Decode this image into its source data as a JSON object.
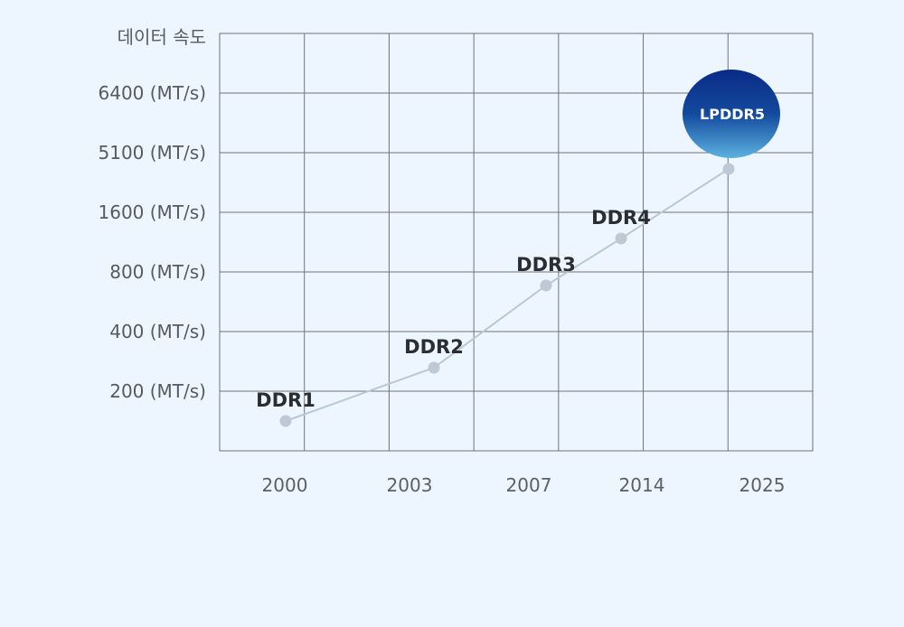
{
  "chart_data": {
    "type": "line",
    "y_axis_title": "데이터 속도",
    "y_tick_labels": [
      "6400 (MT/s)",
      "5100 (MT/s)",
      "1600 (MT/s)",
      "800 (MT/s)",
      "400 (MT/s)",
      "200 (MT/s)"
    ],
    "x_tick_labels": [
      "2000",
      "2003",
      "2007",
      "2014",
      "2025"
    ],
    "grid": true,
    "series": [
      {
        "points": [
          {
            "label": "DDR1",
            "x": 2000,
            "y": 200
          },
          {
            "label": "DDR2",
            "x": 2003,
            "y": 400
          },
          {
            "label": "DDR3",
            "x": 2007,
            "y": 800
          },
          {
            "label": "DDR4",
            "x": 2014,
            "y": 1600
          },
          {
            "label": "LPDDR5",
            "x": 2025,
            "y": 6400
          }
        ]
      }
    ],
    "colors": {
      "background": "#edf6fe",
      "grid": "#6e737b",
      "line": "#b9c8d6",
      "marker": "#bdc9d5",
      "badge_top": "#0a2a86",
      "badge_bottom": "#5bb2e0"
    }
  }
}
